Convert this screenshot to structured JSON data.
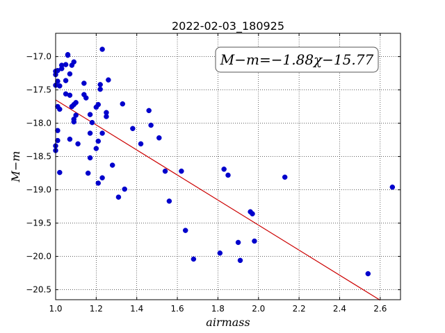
{
  "chart_data": {
    "type": "scatter",
    "title": "2022-02-03_180925",
    "xlabel": "airmass",
    "ylabel": "M−m",
    "xlim": [
      1.0,
      2.7
    ],
    "ylim": [
      -20.65,
      -16.65
    ],
    "x_ticks": [
      "1.0",
      "1.2",
      "1.4",
      "1.6",
      "1.8",
      "2.0",
      "2.2",
      "2.4",
      "2.6"
    ],
    "y_ticks": [
      "−17.0",
      "−17.5",
      "−18.0",
      "−18.5",
      "−19.0",
      "−19.5",
      "−20.0",
      "−20.5"
    ],
    "grid": true,
    "point_color": "#0000cc",
    "fit_color": "#cc0000",
    "annotation": "M−m=−1.88χ−15.77",
    "fit": {
      "slope": -1.88,
      "intercept": -15.77,
      "x_range": [
        1.0,
        2.6
      ]
    },
    "points": [
      [
        1.0,
        -17.22
      ],
      [
        1.0,
        -17.27
      ],
      [
        1.01,
        -17.37
      ],
      [
        1.0,
        -17.43
      ],
      [
        1.01,
        -17.21
      ],
      [
        1.02,
        -17.44
      ],
      [
        1.03,
        -17.18
      ],
      [
        1.03,
        -17.13
      ],
      [
        1.05,
        -17.12
      ],
      [
        1.05,
        -17.36
      ],
      [
        1.05,
        -17.56
      ],
      [
        1.06,
        -16.97
      ],
      [
        1.06,
        -16.98
      ],
      [
        1.07,
        -17.26
      ],
      [
        1.07,
        -17.58
      ],
      [
        1.08,
        -17.75
      ],
      [
        1.08,
        -17.13
      ],
      [
        1.09,
        -17.08
      ],
      [
        1.09,
        -17.72
      ],
      [
        1.1,
        -17.69
      ],
      [
        1.1,
        -17.88
      ],
      [
        1.09,
        -17.94
      ],
      [
        1.09,
        -17.98
      ],
      [
        1.07,
        -18.24
      ],
      [
        1.11,
        -18.31
      ],
      [
        1.01,
        -17.75
      ],
      [
        1.02,
        -17.79
      ],
      [
        1.01,
        -18.11
      ],
      [
        1.01,
        -18.26
      ],
      [
        1.0,
        -18.34
      ],
      [
        1.0,
        -18.41
      ],
      [
        1.02,
        -18.74
      ],
      [
        1.14,
        -17.4
      ],
      [
        1.14,
        -17.57
      ],
      [
        1.15,
        -17.62
      ],
      [
        1.17,
        -17.87
      ],
      [
        1.18,
        -17.99
      ],
      [
        1.17,
        -18.15
      ],
      [
        1.2,
        -17.76
      ],
      [
        1.21,
        -17.72
      ],
      [
        1.22,
        -17.42
      ],
      [
        1.22,
        -17.49
      ],
      [
        1.23,
        -16.89
      ],
      [
        1.25,
        -17.84
      ],
      [
        1.25,
        -17.9
      ],
      [
        1.26,
        -17.35
      ],
      [
        1.23,
        -18.15
      ],
      [
        1.21,
        -18.27
      ],
      [
        1.2,
        -18.38
      ],
      [
        1.17,
        -18.52
      ],
      [
        1.16,
        -18.75
      ],
      [
        1.23,
        -18.82
      ],
      [
        1.21,
        -18.9
      ],
      [
        1.28,
        -18.63
      ],
      [
        1.31,
        -19.11
      ],
      [
        1.34,
        -18.99
      ],
      [
        1.33,
        -17.71
      ],
      [
        1.38,
        -18.08
      ],
      [
        1.42,
        -18.31
      ],
      [
        1.46,
        -17.81
      ],
      [
        1.47,
        -18.03
      ],
      [
        1.51,
        -18.22
      ],
      [
        1.54,
        -18.72
      ],
      [
        1.56,
        -19.17
      ],
      [
        1.62,
        -18.72
      ],
      [
        1.64,
        -19.61
      ],
      [
        1.68,
        -20.04
      ],
      [
        1.81,
        -19.95
      ],
      [
        1.83,
        -18.69
      ],
      [
        1.85,
        -18.78
      ],
      [
        1.9,
        -19.79
      ],
      [
        1.91,
        -20.06
      ],
      [
        1.96,
        -19.33
      ],
      [
        1.97,
        -19.36
      ],
      [
        1.98,
        -19.77
      ],
      [
        2.13,
        -18.81
      ],
      [
        2.54,
        -20.26
      ],
      [
        2.66,
        -18.96
      ]
    ]
  }
}
